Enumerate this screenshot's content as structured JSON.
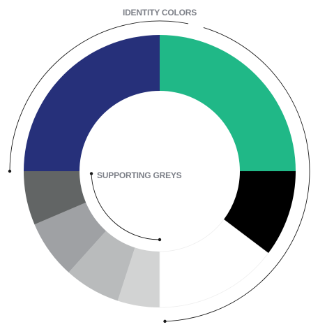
{
  "labels": {
    "identity": "IDENTITY COLORS",
    "supporting": "SUPPORTING GREYS"
  },
  "segments": [
    {
      "name": "identity-green",
      "color": "#20b887",
      "from_deg": 0,
      "to_deg": 90
    },
    {
      "name": "black",
      "color": "#000000",
      "from_deg": 90,
      "to_deg": 127
    },
    {
      "name": "white",
      "color": "#ffffff",
      "from_deg": 127,
      "to_deg": 180
    },
    {
      "name": "grey-lightest",
      "color": "#d2d3d3",
      "from_deg": 180,
      "to_deg": 198
    },
    {
      "name": "grey-light",
      "color": "#b9bbbc",
      "from_deg": 198,
      "to_deg": 222
    },
    {
      "name": "grey-mid",
      "color": "#9fa1a4",
      "from_deg": 222,
      "to_deg": 247
    },
    {
      "name": "grey-dark",
      "color": "#626565",
      "from_deg": 247,
      "to_deg": 270
    },
    {
      "name": "identity-navy",
      "color": "#26307a",
      "from_deg": 270,
      "to_deg": 360
    }
  ],
  "bracket_color": "#1a1a1a"
}
